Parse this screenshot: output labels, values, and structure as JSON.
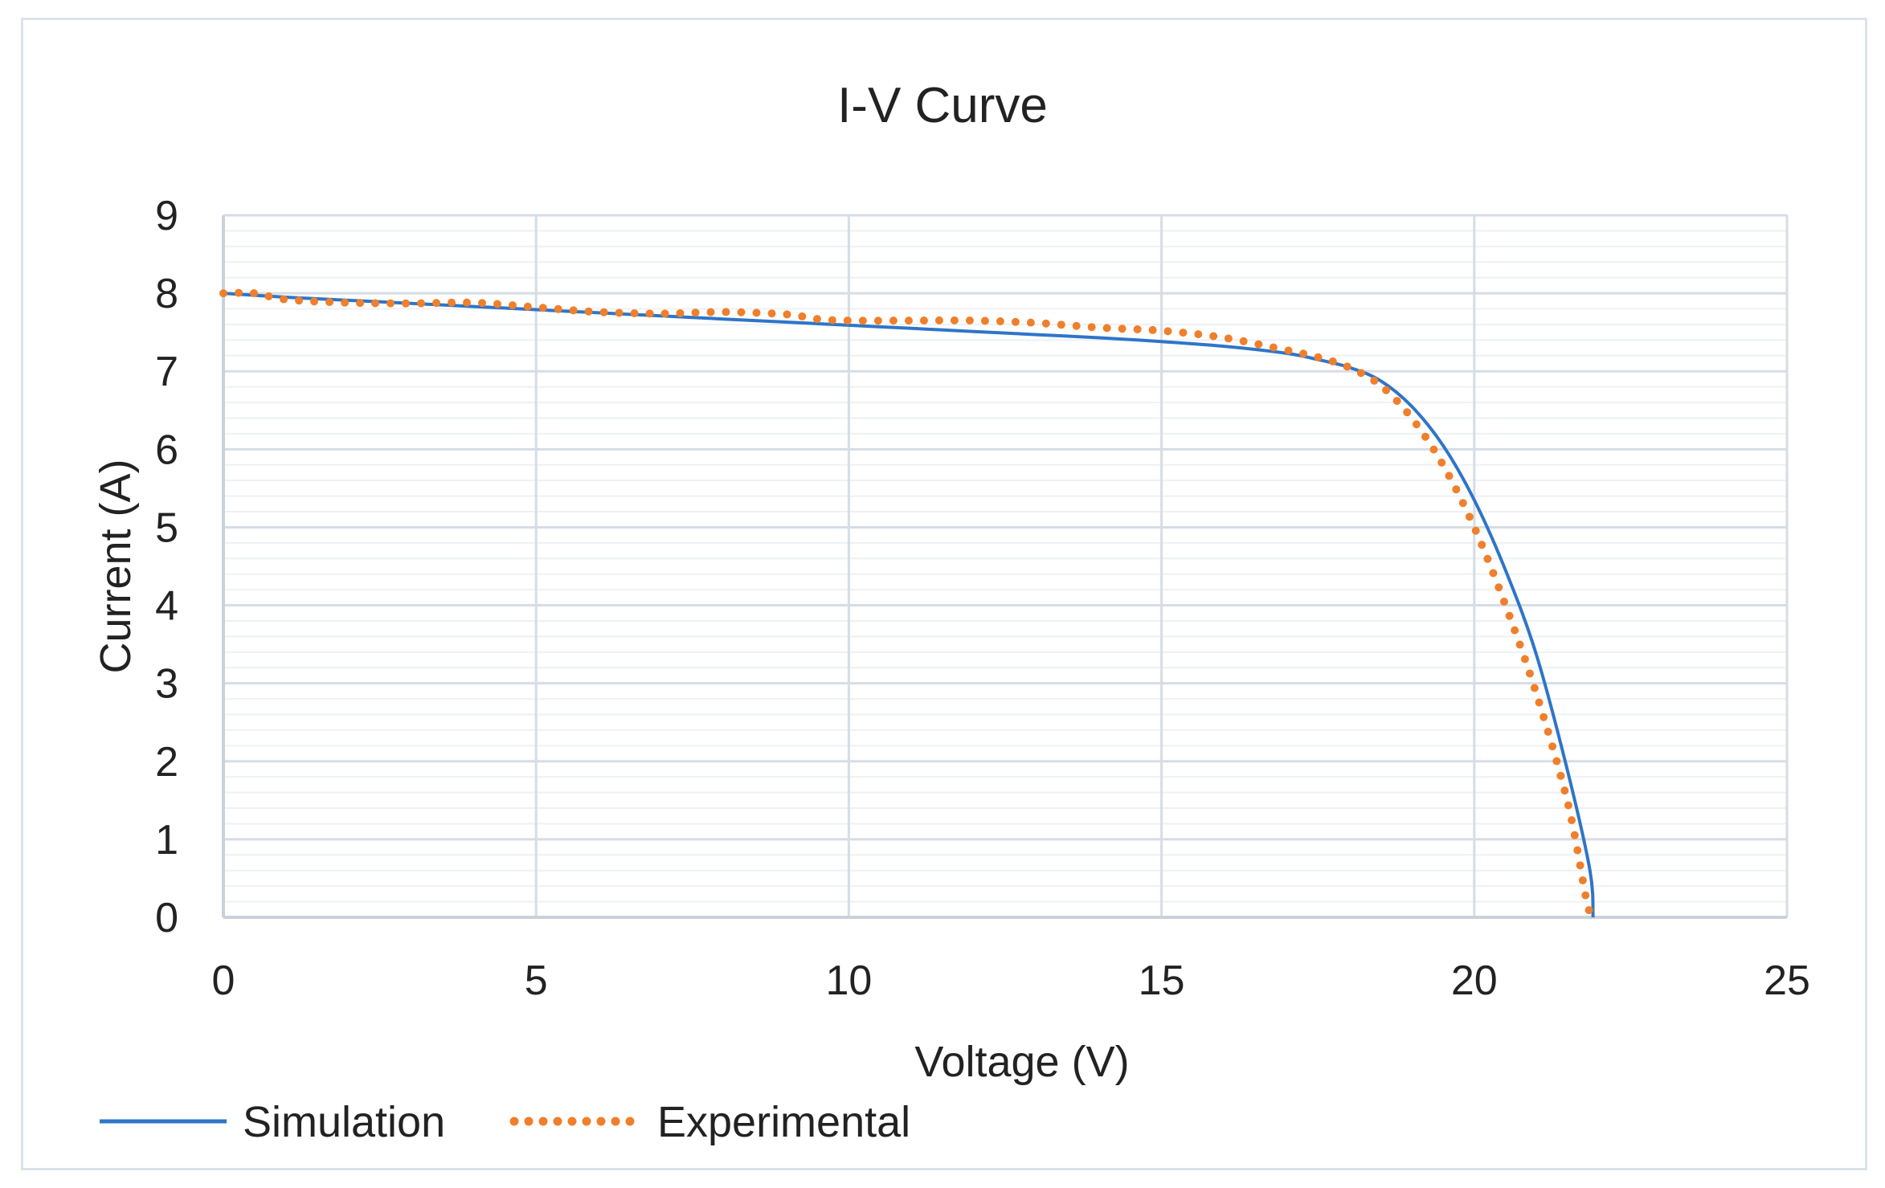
{
  "chart_data": {
    "type": "line",
    "title": "I-V Curve",
    "xlabel": "Voltage (V)",
    "ylabel": "Current (A)",
    "xlim": [
      0,
      25
    ],
    "ylim": [
      0,
      9
    ],
    "xticks": [
      "0",
      "5",
      "10",
      "15",
      "20",
      "25"
    ],
    "yticks": [
      "0",
      "1",
      "2",
      "3",
      "4",
      "5",
      "6",
      "7",
      "8",
      "9"
    ],
    "grid": true,
    "minor_grid_y_step": 0.2,
    "legend_position": "bottom-left",
    "series": [
      {
        "name": "Simulation",
        "style": "solid",
        "color": "#2e75c9",
        "points": [
          [
            0,
            8.0
          ],
          [
            1,
            7.95
          ],
          [
            2,
            7.91
          ],
          [
            3,
            7.87
          ],
          [
            4,
            7.83
          ],
          [
            5,
            7.79
          ],
          [
            6,
            7.75
          ],
          [
            7,
            7.71
          ],
          [
            8,
            7.67
          ],
          [
            9,
            7.63
          ],
          [
            10,
            7.59
          ],
          [
            11,
            7.55
          ],
          [
            12,
            7.51
          ],
          [
            13,
            7.47
          ],
          [
            14,
            7.43
          ],
          [
            15,
            7.38
          ],
          [
            16,
            7.32
          ],
          [
            17,
            7.23
          ],
          [
            17.5,
            7.15
          ],
          [
            18,
            7.05
          ],
          [
            18.5,
            6.88
          ],
          [
            19,
            6.55
          ],
          [
            19.5,
            6.05
          ],
          [
            20,
            5.35
          ],
          [
            20.5,
            4.45
          ],
          [
            21,
            3.35
          ],
          [
            21.5,
            1.85
          ],
          [
            21.85,
            0.6
          ],
          [
            21.9,
            0
          ]
        ]
      },
      {
        "name": "Experimental",
        "style": "dotted",
        "color": "#f07f2b",
        "points": [
          [
            0,
            8.0
          ],
          [
            0.5,
            8.0
          ],
          [
            1,
            7.92
          ],
          [
            2,
            7.88
          ],
          [
            3,
            7.87
          ],
          [
            4,
            7.88
          ],
          [
            5,
            7.82
          ],
          [
            6,
            7.76
          ],
          [
            7,
            7.74
          ],
          [
            8,
            7.76
          ],
          [
            9,
            7.73
          ],
          [
            9.5,
            7.67
          ],
          [
            10,
            7.65
          ],
          [
            11,
            7.65
          ],
          [
            12,
            7.65
          ],
          [
            13,
            7.62
          ],
          [
            14,
            7.56
          ],
          [
            15,
            7.52
          ],
          [
            16,
            7.43
          ],
          [
            17,
            7.27
          ],
          [
            17.5,
            7.18
          ],
          [
            18,
            7.05
          ],
          [
            18.5,
            6.82
          ],
          [
            19,
            6.4
          ],
          [
            19.5,
            5.8
          ],
          [
            20,
            5.0
          ],
          [
            20.5,
            4.0
          ],
          [
            21,
            2.85
          ],
          [
            21.5,
            1.45
          ],
          [
            21.8,
            0.2
          ],
          [
            21.9,
            0
          ]
        ]
      }
    ]
  }
}
